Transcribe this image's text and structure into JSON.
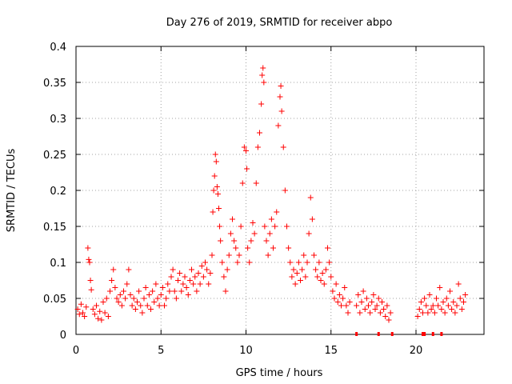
{
  "chart_data": {
    "type": "scatter",
    "title": "Day 276 of 2019, SRMTID for receiver abpo",
    "xlabel": "GPS time / hours",
    "ylabel": "SRMTID / TECUs",
    "xlim": [
      0,
      24
    ],
    "ylim": [
      0,
      0.4
    ],
    "xticks": [
      0,
      5,
      10,
      15,
      20
    ],
    "xtick_labels": [
      "0",
      "5",
      "10",
      "15",
      "20"
    ],
    "yticks": [
      0,
      0.05,
      0.1,
      0.15,
      0.2,
      0.25,
      0.3,
      0.35,
      0.4
    ],
    "ytick_labels": [
      "0",
      "0.05",
      "0.1",
      "0.15",
      "0.2",
      "0.25",
      "0.3",
      "0.35",
      "0.4"
    ],
    "grid": true,
    "marker": "+",
    "color": "#ff0000",
    "series": [
      {
        "name": "SRMTID",
        "points": [
          [
            0.1,
            0.035
          ],
          [
            0.2,
            0.028
          ],
          [
            0.3,
            0.042
          ],
          [
            0.4,
            0.03
          ],
          [
            0.5,
            0.025
          ],
          [
            0.6,
            0.038
          ],
          [
            0.7,
            0.12
          ],
          [
            0.75,
            0.104
          ],
          [
            0.8,
            0.1
          ],
          [
            0.85,
            0.075
          ],
          [
            0.9,
            0.062
          ],
          [
            1.0,
            0.035
          ],
          [
            1.1,
            0.028
          ],
          [
            1.2,
            0.04
          ],
          [
            1.3,
            0.022
          ],
          [
            1.4,
            0.032
          ],
          [
            1.5,
            0.02
          ],
          [
            1.6,
            0.045
          ],
          [
            1.7,
            0.03
          ],
          [
            1.8,
            0.05
          ],
          [
            1.9,
            0.025
          ],
          [
            2.0,
            0.06
          ],
          [
            2.1,
            0.075
          ],
          [
            2.2,
            0.09
          ],
          [
            2.3,
            0.065
          ],
          [
            2.4,
            0.05
          ],
          [
            2.5,
            0.045
          ],
          [
            2.6,
            0.055
          ],
          [
            2.7,
            0.04
          ],
          [
            2.8,
            0.06
          ],
          [
            2.9,
            0.05
          ],
          [
            3.0,
            0.07
          ],
          [
            3.1,
            0.09
          ],
          [
            3.2,
            0.055
          ],
          [
            3.3,
            0.04
          ],
          [
            3.4,
            0.05
          ],
          [
            3.5,
            0.035
          ],
          [
            3.6,
            0.045
          ],
          [
            3.7,
            0.06
          ],
          [
            3.8,
            0.04
          ],
          [
            3.9,
            0.03
          ],
          [
            4.0,
            0.05
          ],
          [
            4.1,
            0.065
          ],
          [
            4.2,
            0.04
          ],
          [
            4.3,
            0.055
          ],
          [
            4.4,
            0.035
          ],
          [
            4.5,
            0.06
          ],
          [
            4.6,
            0.045
          ],
          [
            4.7,
            0.07
          ],
          [
            4.8,
            0.05
          ],
          [
            4.9,
            0.04
          ],
          [
            5.0,
            0.055
          ],
          [
            5.1,
            0.065
          ],
          [
            5.2,
            0.04
          ],
          [
            5.3,
            0.05
          ],
          [
            5.4,
            0.07
          ],
          [
            5.5,
            0.06
          ],
          [
            5.6,
            0.08
          ],
          [
            5.7,
            0.09
          ],
          [
            5.8,
            0.06
          ],
          [
            5.9,
            0.05
          ],
          [
            6.0,
            0.075
          ],
          [
            6.1,
            0.085
          ],
          [
            6.2,
            0.06
          ],
          [
            6.3,
            0.07
          ],
          [
            6.4,
            0.08
          ],
          [
            6.5,
            0.065
          ],
          [
            6.6,
            0.055
          ],
          [
            6.7,
            0.075
          ],
          [
            6.8,
            0.09
          ],
          [
            6.9,
            0.07
          ],
          [
            7.0,
            0.08
          ],
          [
            7.1,
            0.06
          ],
          [
            7.2,
            0.085
          ],
          [
            7.3,
            0.07
          ],
          [
            7.4,
            0.095
          ],
          [
            7.5,
            0.08
          ],
          [
            7.6,
            0.1
          ],
          [
            7.7,
            0.09
          ],
          [
            7.8,
            0.07
          ],
          [
            7.9,
            0.085
          ],
          [
            8.0,
            0.11
          ],
          [
            8.05,
            0.17
          ],
          [
            8.1,
            0.2
          ],
          [
            8.15,
            0.22
          ],
          [
            8.2,
            0.25
          ],
          [
            8.25,
            0.24
          ],
          [
            8.3,
            0.205
          ],
          [
            8.35,
            0.195
          ],
          [
            8.4,
            0.175
          ],
          [
            8.45,
            0.15
          ],
          [
            8.5,
            0.13
          ],
          [
            8.6,
            0.1
          ],
          [
            8.7,
            0.08
          ],
          [
            8.8,
            0.06
          ],
          [
            8.9,
            0.09
          ],
          [
            9.0,
            0.11
          ],
          [
            9.1,
            0.14
          ],
          [
            9.2,
            0.16
          ],
          [
            9.3,
            0.13
          ],
          [
            9.4,
            0.12
          ],
          [
            9.5,
            0.1
          ],
          [
            9.6,
            0.11
          ],
          [
            9.7,
            0.15
          ],
          [
            9.8,
            0.21
          ],
          [
            9.9,
            0.26
          ],
          [
            10.0,
            0.255
          ],
          [
            10.05,
            0.23
          ],
          [
            10.1,
            0.12
          ],
          [
            10.2,
            0.1
          ],
          [
            10.3,
            0.13
          ],
          [
            10.4,
            0.155
          ],
          [
            10.5,
            0.14
          ],
          [
            10.6,
            0.21
          ],
          [
            10.7,
            0.26
          ],
          [
            10.8,
            0.28
          ],
          [
            10.9,
            0.32
          ],
          [
            10.95,
            0.36
          ],
          [
            11.0,
            0.37
          ],
          [
            11.05,
            0.35
          ],
          [
            11.1,
            0.15
          ],
          [
            11.2,
            0.13
          ],
          [
            11.3,
            0.11
          ],
          [
            11.4,
            0.14
          ],
          [
            11.5,
            0.16
          ],
          [
            11.6,
            0.12
          ],
          [
            11.7,
            0.15
          ],
          [
            11.8,
            0.17
          ],
          [
            11.9,
            0.29
          ],
          [
            12.0,
            0.33
          ],
          [
            12.05,
            0.345
          ],
          [
            12.1,
            0.31
          ],
          [
            12.2,
            0.26
          ],
          [
            12.3,
            0.2
          ],
          [
            12.4,
            0.15
          ],
          [
            12.5,
            0.12
          ],
          [
            12.6,
            0.1
          ],
          [
            12.7,
            0.08
          ],
          [
            12.8,
            0.09
          ],
          [
            12.9,
            0.07
          ],
          [
            13.0,
            0.085
          ],
          [
            13.1,
            0.1
          ],
          [
            13.2,
            0.075
          ],
          [
            13.3,
            0.09
          ],
          [
            13.4,
            0.11
          ],
          [
            13.5,
            0.08
          ],
          [
            13.6,
            0.1
          ],
          [
            13.7,
            0.14
          ],
          [
            13.8,
            0.19
          ],
          [
            13.9,
            0.16
          ],
          [
            14.0,
            0.11
          ],
          [
            14.1,
            0.09
          ],
          [
            14.2,
            0.08
          ],
          [
            14.3,
            0.1
          ],
          [
            14.4,
            0.075
          ],
          [
            14.5,
            0.085
          ],
          [
            14.6,
            0.07
          ],
          [
            14.7,
            0.09
          ],
          [
            14.8,
            0.12
          ],
          [
            14.9,
            0.1
          ],
          [
            15.0,
            0.08
          ],
          [
            15.1,
            0.06
          ],
          [
            15.2,
            0.05
          ],
          [
            15.3,
            0.07
          ],
          [
            15.4,
            0.045
          ],
          [
            15.5,
            0.055
          ],
          [
            15.6,
            0.04
          ],
          [
            15.7,
            0.05
          ],
          [
            15.8,
            0.065
          ],
          [
            15.9,
            0.04
          ],
          [
            16.0,
            0.03
          ],
          [
            16.1,
            0.045
          ],
          [
            16.5,
            0.04
          ],
          [
            16.6,
            0.055
          ],
          [
            16.7,
            0.03
          ],
          [
            16.8,
            0.045
          ],
          [
            16.9,
            0.06
          ],
          [
            17.0,
            0.035
          ],
          [
            17.1,
            0.05
          ],
          [
            17.2,
            0.04
          ],
          [
            17.3,
            0.03
          ],
          [
            17.4,
            0.045
          ],
          [
            17.5,
            0.055
          ],
          [
            17.6,
            0.035
          ],
          [
            17.7,
            0.04
          ],
          [
            17.8,
            0.05
          ],
          [
            17.9,
            0.03
          ],
          [
            18.0,
            0.045
          ],
          [
            18.1,
            0.035
          ],
          [
            18.2,
            0.025
          ],
          [
            18.3,
            0.04
          ],
          [
            18.4,
            0.02
          ],
          [
            18.5,
            0.03
          ],
          [
            20.1,
            0.025
          ],
          [
            20.2,
            0.035
          ],
          [
            20.3,
            0.045
          ],
          [
            20.4,
            0.03
          ],
          [
            20.5,
            0.05
          ],
          [
            20.6,
            0.04
          ],
          [
            20.7,
            0.03
          ],
          [
            20.8,
            0.055
          ],
          [
            20.9,
            0.035
          ],
          [
            21.0,
            0.04
          ],
          [
            21.1,
            0.03
          ],
          [
            21.2,
            0.05
          ],
          [
            21.3,
            0.04
          ],
          [
            21.4,
            0.065
          ],
          [
            21.5,
            0.035
          ],
          [
            21.6,
            0.045
          ],
          [
            21.7,
            0.03
          ],
          [
            21.8,
            0.05
          ],
          [
            21.9,
            0.04
          ],
          [
            22.0,
            0.06
          ],
          [
            22.1,
            0.035
          ],
          [
            22.2,
            0.045
          ],
          [
            22.3,
            0.03
          ],
          [
            22.4,
            0.04
          ],
          [
            22.5,
            0.07
          ],
          [
            22.6,
            0.05
          ],
          [
            22.7,
            0.035
          ],
          [
            22.8,
            0.045
          ],
          [
            22.9,
            0.055
          ]
        ]
      }
    ],
    "zero_markers": [
      16.5,
      17.8,
      18.6,
      20.4,
      20.5,
      21.0,
      21.5
    ]
  }
}
